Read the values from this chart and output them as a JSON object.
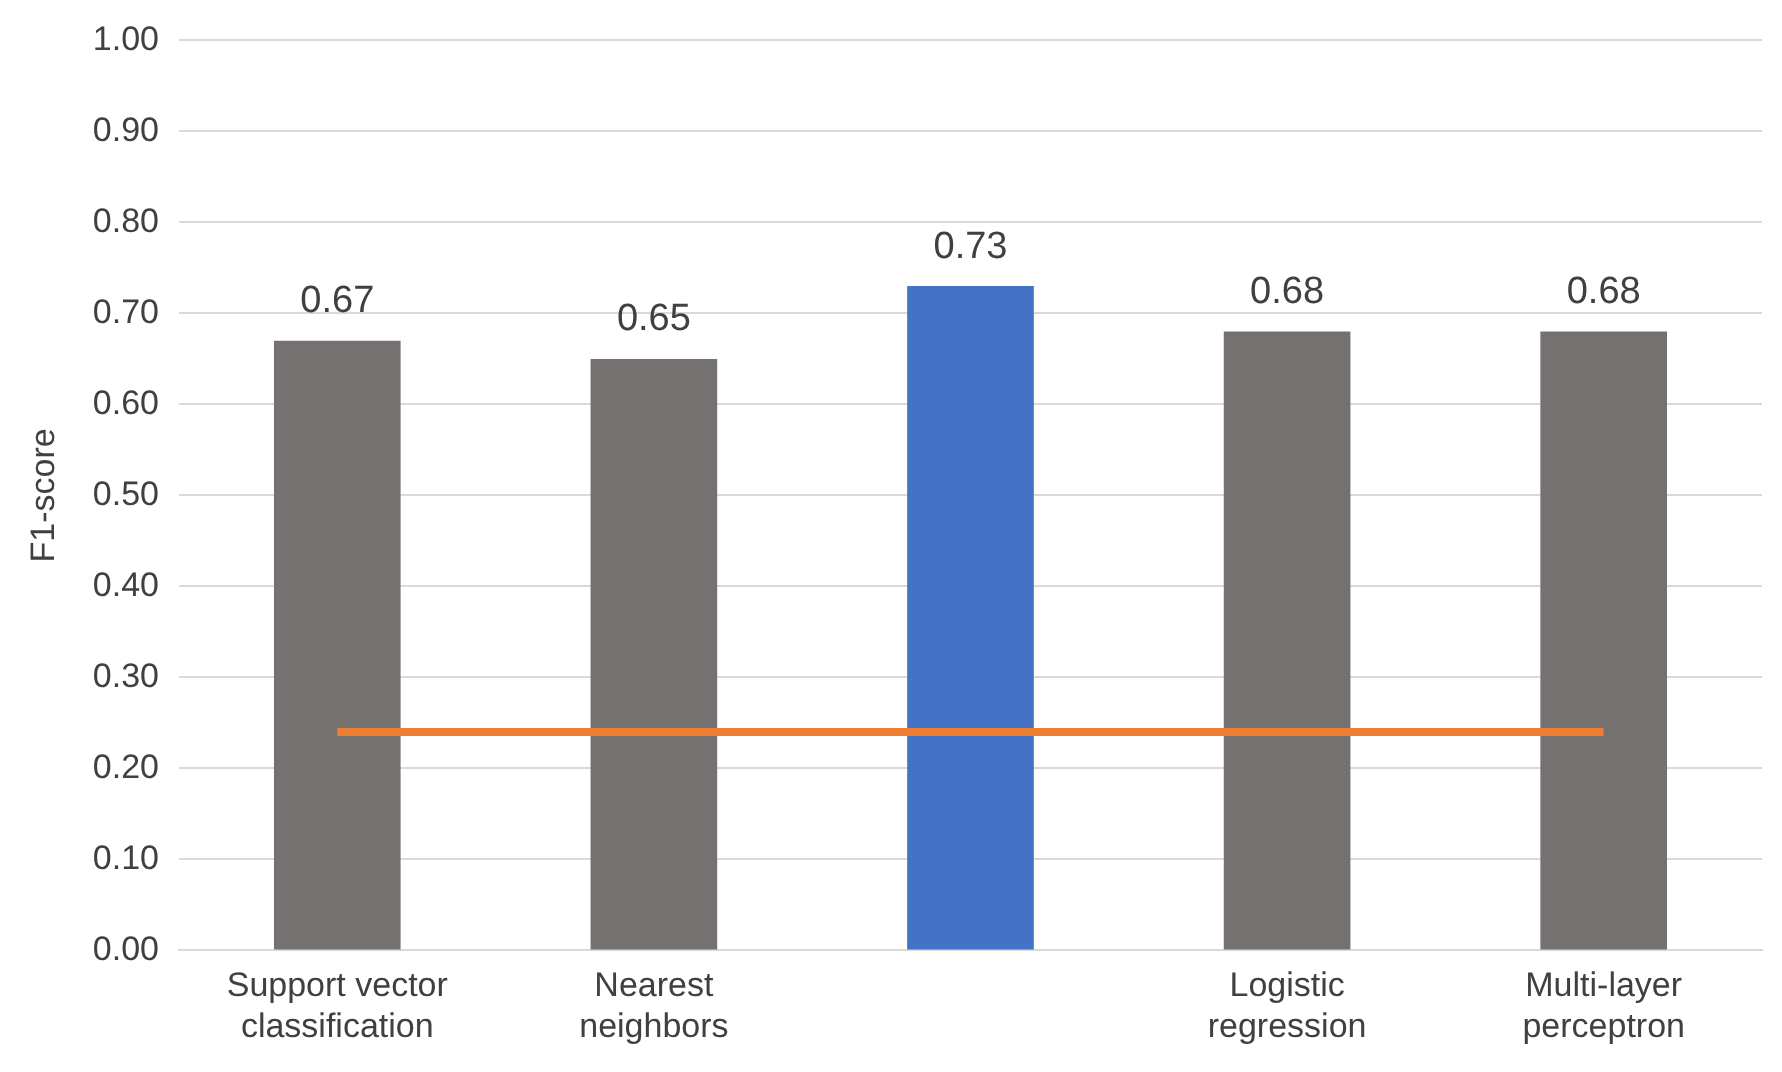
{
  "chart_data": {
    "type": "bar",
    "ylabel": "F1-score",
    "categories": [
      "Support vector classification",
      "Nearest neighbors",
      null,
      "Logistic regression",
      "Multi-layer perceptron"
    ],
    "series": [
      {
        "colors": [
          "#767171",
          "#767171",
          "#4472c4",
          "#767171",
          "#767171"
        ],
        "values": [
          0.67,
          0.65,
          0.73,
          0.68,
          0.68
        ],
        "value_labels": [
          "0.67",
          "0.65",
          "0.73",
          "0.68",
          "0.68"
        ]
      },
      {
        "type": "line",
        "color": "#ed7d31",
        "values": [
          0.24,
          0.24,
          0.24,
          0.24,
          0.24
        ],
        "marker": "none"
      }
    ],
    "ylim": [
      0,
      1
    ],
    "yticks": [
      {
        "value": 0,
        "label": "0.00"
      },
      {
        "value": 0.1,
        "label": "0.10"
      },
      {
        "value": 0.2,
        "label": "0.20"
      },
      {
        "value": 0.3,
        "label": "0.30"
      },
      {
        "value": 0.4,
        "label": "0.40"
      },
      {
        "value": 0.5,
        "label": "0.50"
      },
      {
        "value": 0.6,
        "label": "0.60"
      },
      {
        "value": 0.7,
        "label": "0.70"
      },
      {
        "value": 0.8,
        "label": "0.80"
      },
      {
        "value": 0.9,
        "label": "0.90"
      },
      {
        "value": 1,
        "label": "1.00"
      }
    ],
    "grid": "y",
    "legend": false
  }
}
